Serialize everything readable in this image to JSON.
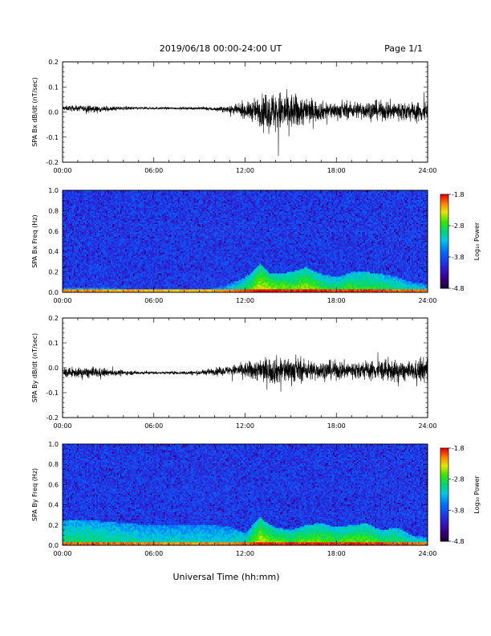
{
  "header": {
    "title": "2019/06/18  00:00-24:00 UT",
    "page": "Page 1/1"
  },
  "chart_data": [
    {
      "type": "line",
      "ylabel": "SPA Bx dB/dt (nT/sec)",
      "xlim": [
        0,
        24
      ],
      "ylim": [
        -0.2,
        0.2
      ],
      "yticks": [
        -0.2,
        -0.1,
        0.0,
        0.1,
        0.2
      ],
      "ytick_labels": [
        "-0.2",
        "-0.1",
        "0.0",
        "0.1",
        "0.2"
      ],
      "xticks": [
        0,
        6,
        12,
        18,
        24
      ],
      "xtick_labels": [
        "00:00",
        "06:00",
        "12:00",
        "18:00",
        "24:00"
      ],
      "series": [
        {
          "x_hours": [
            0,
            1,
            2,
            3,
            4,
            5,
            6,
            7,
            8,
            9,
            10,
            11,
            12,
            13,
            14,
            15,
            16,
            17,
            18,
            19,
            20,
            21,
            22,
            23,
            24
          ],
          "offset": [
            0.015,
            0.015,
            0.012,
            0.012,
            0.015,
            0.015,
            0.015,
            0.015,
            0.015,
            0.015,
            0.012,
            0.01,
            0.005,
            0.005,
            0.0,
            0.0,
            0.005,
            0.005,
            0.005,
            0.008,
            0.008,
            0.005,
            0.005,
            0.0,
            0.0
          ],
          "amplitude": [
            0.01,
            0.012,
            0.015,
            0.01,
            0.008,
            0.006,
            0.005,
            0.005,
            0.005,
            0.006,
            0.008,
            0.015,
            0.03,
            0.06,
            0.09,
            0.08,
            0.06,
            0.04,
            0.035,
            0.035,
            0.04,
            0.04,
            0.045,
            0.04,
            0.05
          ]
        }
      ]
    },
    {
      "type": "heatmap",
      "ylabel": "SPA Bx Freq (Hz)",
      "xlim": [
        0,
        24
      ],
      "ylim": [
        0.0,
        1.0
      ],
      "yticks": [
        0.0,
        0.2,
        0.4,
        0.6,
        0.8,
        1.0
      ],
      "ytick_labels": [
        "0.0",
        "0.2",
        "0.4",
        "0.6",
        "0.8",
        "1.0"
      ],
      "xticks": [
        0,
        6,
        12,
        18,
        24
      ],
      "xtick_labels": [
        "00:00",
        "06:00",
        "12:00",
        "18:00",
        "24:00"
      ],
      "colorbar": {
        "label": "Log₁₀ Power",
        "range": [
          -4.8,
          -1.8
        ],
        "ticks": [
          -1.8,
          -2.8,
          -3.8,
          -4.8
        ],
        "tick_labels": [
          "-1.8",
          "-2.8",
          "-3.8",
          "-4.8"
        ]
      },
      "x_hours": [
        0,
        2,
        4,
        6,
        8,
        10,
        11,
        12,
        12.5,
        13,
        13.5,
        14,
        15,
        16,
        17,
        18,
        19,
        20,
        21,
        22,
        23,
        24
      ],
      "activity_top_hz": [
        0.05,
        0.05,
        0.04,
        0.03,
        0.03,
        0.04,
        0.08,
        0.15,
        0.2,
        0.28,
        0.2,
        0.18,
        0.2,
        0.25,
        0.18,
        0.15,
        0.2,
        0.2,
        0.18,
        0.15,
        0.1,
        0.08
      ],
      "activity_level": [
        0.3,
        0.3,
        0.2,
        0.15,
        0.15,
        0.2,
        0.35,
        0.5,
        0.6,
        0.7,
        0.7,
        0.65,
        0.6,
        0.65,
        0.55,
        0.5,
        0.55,
        0.55,
        0.5,
        0.45,
        0.4,
        0.35
      ]
    },
    {
      "type": "line",
      "ylabel": "SPA By dB/dt (nT/sec)",
      "xlim": [
        0,
        24
      ],
      "ylim": [
        -0.2,
        0.2
      ],
      "yticks": [
        -0.2,
        -0.1,
        0.0,
        0.1,
        0.2
      ],
      "ytick_labels": [
        "-0.2",
        "-0.1",
        "0.0",
        "0.1",
        "0.2"
      ],
      "xticks": [
        0,
        6,
        12,
        18,
        24
      ],
      "xtick_labels": [
        "00:00",
        "06:00",
        "12:00",
        "18:00",
        "24:00"
      ],
      "series": [
        {
          "x_hours": [
            0,
            1,
            2,
            3,
            4,
            5,
            6,
            7,
            8,
            9,
            10,
            11,
            12,
            13,
            14,
            15,
            16,
            17,
            18,
            19,
            20,
            21,
            22,
            23,
            24
          ],
          "offset": [
            -0.02,
            -0.02,
            -0.02,
            -0.02,
            -0.02,
            -0.02,
            -0.02,
            -0.02,
            -0.02,
            -0.02,
            -0.015,
            -0.01,
            -0.01,
            -0.01,
            -0.01,
            -0.01,
            -0.01,
            -0.01,
            -0.01,
            -0.01,
            -0.01,
            -0.01,
            -0.015,
            -0.015,
            -0.01
          ],
          "amplitude": [
            0.02,
            0.02,
            0.025,
            0.015,
            0.01,
            0.008,
            0.006,
            0.006,
            0.008,
            0.01,
            0.015,
            0.02,
            0.035,
            0.05,
            0.06,
            0.055,
            0.045,
            0.04,
            0.04,
            0.04,
            0.04,
            0.045,
            0.045,
            0.04,
            0.06
          ]
        }
      ]
    },
    {
      "type": "heatmap",
      "ylabel": "SPA By Freq (Hz)",
      "xlim": [
        0,
        24
      ],
      "ylim": [
        0.0,
        1.0
      ],
      "yticks": [
        0.0,
        0.2,
        0.4,
        0.6,
        0.8,
        1.0
      ],
      "ytick_labels": [
        "0.0",
        "0.2",
        "0.4",
        "0.6",
        "0.8",
        "1.0"
      ],
      "xticks": [
        0,
        6,
        12,
        18,
        24
      ],
      "xtick_labels": [
        "00:00",
        "06:00",
        "12:00",
        "18:00",
        "24:00"
      ],
      "colorbar": {
        "label": "Log₁₀ Power",
        "range": [
          -4.8,
          -1.8
        ],
        "ticks": [
          -1.8,
          -2.8,
          -3.8,
          -4.8
        ],
        "tick_labels": [
          "-1.8",
          "-2.8",
          "-3.8",
          "-4.8"
        ]
      },
      "x_hours": [
        0,
        2,
        4,
        6,
        8,
        10,
        11,
        12,
        12.5,
        13,
        13.5,
        14,
        15,
        16,
        17,
        18,
        19,
        20,
        21,
        22,
        23,
        24
      ],
      "activity_top_hz": [
        0.25,
        0.25,
        0.22,
        0.2,
        0.2,
        0.2,
        0.18,
        0.12,
        0.2,
        0.28,
        0.22,
        0.18,
        0.15,
        0.2,
        0.22,
        0.18,
        0.2,
        0.22,
        0.15,
        0.18,
        0.1,
        0.08
      ],
      "activity_level": [
        0.45,
        0.45,
        0.4,
        0.35,
        0.35,
        0.35,
        0.35,
        0.45,
        0.55,
        0.7,
        0.65,
        0.6,
        0.55,
        0.6,
        0.6,
        0.55,
        0.6,
        0.6,
        0.55,
        0.5,
        0.45,
        0.4
      ]
    }
  ],
  "footer": {
    "xlabel": "Universal Time (hh:mm)"
  },
  "colors": {
    "trace": "#000000",
    "axis": "#000000",
    "background": "#ffffff"
  }
}
